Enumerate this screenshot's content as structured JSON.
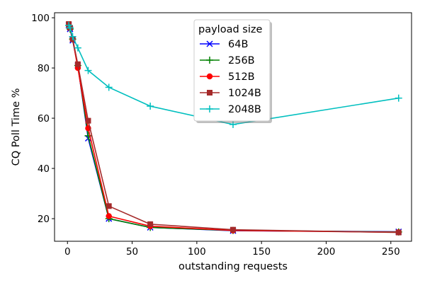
{
  "chart_data": {
    "type": "line",
    "xlabel": "outstanding requests",
    "ylabel": "CQ Poll Time %",
    "xlim": [
      -10,
      266
    ],
    "ylim": [
      11,
      102
    ],
    "xticks": [
      0,
      50,
      100,
      150,
      200,
      250
    ],
    "yticks": [
      20,
      40,
      60,
      80,
      100
    ],
    "grid": false,
    "legend": {
      "title": "payload size",
      "placement": "top-center"
    },
    "x": [
      1,
      2,
      4,
      8,
      16,
      32,
      64,
      128,
      256
    ],
    "series": [
      {
        "name": "64B",
        "color": "#0000ff",
        "marker": "x",
        "values": [
          97,
          95.5,
          91,
          81,
          52,
          20,
          16.5,
          15.2,
          14.8
        ]
      },
      {
        "name": "256B",
        "color": "#008000",
        "marker": "plus",
        "values": [
          97,
          95.5,
          91.5,
          81,
          53,
          20,
          16.5,
          15.3,
          14.7
        ]
      },
      {
        "name": "512B",
        "color": "#ff0000",
        "marker": "circle",
        "values": [
          97,
          96,
          91.5,
          80,
          56,
          21,
          17,
          15.3,
          14.6
        ]
      },
      {
        "name": "1024B",
        "color": "#a52a2a",
        "marker": "square",
        "values": [
          97.5,
          96,
          91.5,
          81.5,
          59,
          25,
          17.8,
          15.6,
          14.5
        ]
      },
      {
        "name": "2048B",
        "color": "#00bfbf",
        "marker": "plus",
        "values": [
          97,
          96,
          92.5,
          88,
          79,
          72.3,
          64.8,
          57.5,
          68
        ]
      }
    ]
  }
}
